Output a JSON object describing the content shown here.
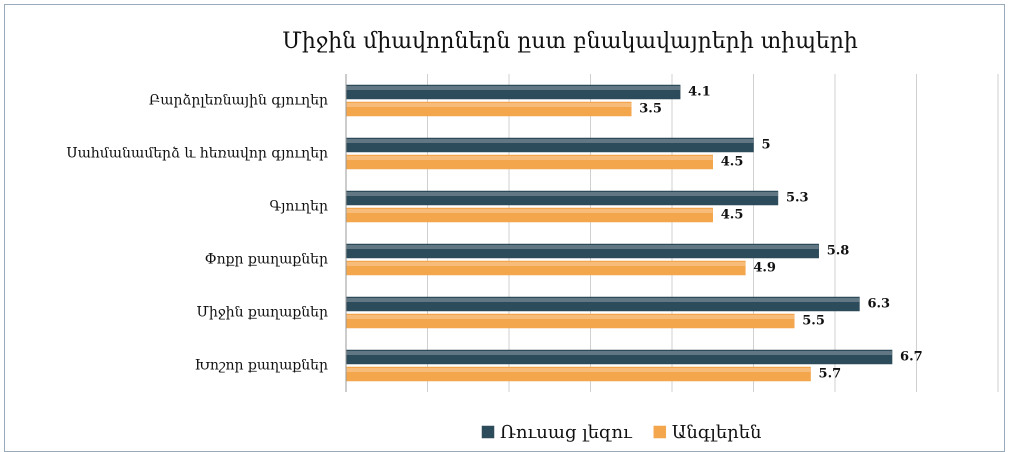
{
  "chart_data": {
    "type": "bar",
    "orientation": "horizontal",
    "title": "Միջին միավորներն ըստ բնակավայրերի տիպերի",
    "categories": [
      "Բարձրլեռնային գյուղեր",
      "Սահմանամերձ և հեռավոր գյուղեր",
      "Գյուղեր",
      "Փոքր քաղաքներ",
      "Միջին քաղաքներ",
      "Խոշոր քաղաքներ"
    ],
    "series": [
      {
        "name": "Ռուսաց լեզու",
        "color": "#2c4b5b",
        "values": [
          4.1,
          5,
          5.3,
          5.8,
          6.3,
          6.7
        ]
      },
      {
        "name": "Անգլերեն",
        "color": "#f4a64c",
        "values": [
          3.5,
          4.5,
          4.5,
          4.9,
          5.5,
          5.7
        ]
      }
    ],
    "xlim": [
      0,
      8
    ],
    "xticks": [
      0,
      1,
      2,
      3,
      4,
      5,
      6,
      7,
      8
    ],
    "grid": true,
    "legend": "bottom"
  }
}
